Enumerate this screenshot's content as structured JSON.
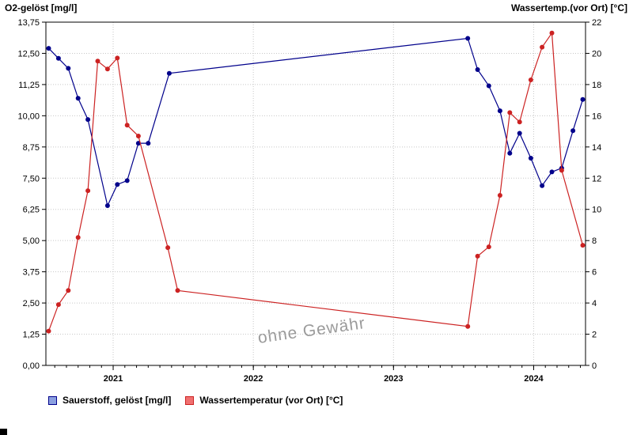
{
  "watermark_note": "ohne Gewähr",
  "legend": {
    "items": [
      {
        "label": "Sauerstoff, gelöst [mg/l]",
        "fill": "#8ba0e0",
        "border": "#00008b"
      },
      {
        "label": "Wassertemperatur (vor Ort) [°C]",
        "fill": "#f07070",
        "border": "#cc2222"
      }
    ]
  },
  "chart_data": {
    "type": "line",
    "watermark": "ohne Gewähr",
    "grid": true,
    "legend_position": "bottom-left",
    "x_axis": {
      "min": 2020.52,
      "max": 2024.37,
      "ticks": [
        2021,
        2022,
        2023,
        2024
      ],
      "tick_labels": [
        "2021",
        "2022",
        "2023",
        "2024"
      ]
    },
    "left_axis": {
      "title": "O2-gelöst [mg/l]",
      "min": 0,
      "max": 13.75,
      "ticks": [
        0,
        1.25,
        2.5,
        3.75,
        5,
        6.25,
        7.5,
        8.75,
        10,
        11.25,
        12.5,
        13.75
      ],
      "tick_labels": [
        "0,00",
        "1,25",
        "2,50",
        "3,75",
        "5,00",
        "6,25",
        "7,50",
        "8,75",
        "10,00",
        "11,25",
        "12,50",
        "13,75"
      ]
    },
    "right_axis": {
      "title": "Wassertemp.(vor Ort) [°C]",
      "min": 0,
      "max": 22,
      "ticks": [
        0,
        2,
        4,
        6,
        8,
        10,
        12,
        14,
        16,
        18,
        20,
        22
      ],
      "tick_labels": [
        "0",
        "2",
        "4",
        "6",
        "8",
        "10",
        "12",
        "14",
        "16",
        "18",
        "20",
        "22"
      ]
    },
    "series": [
      {
        "id": "oxygen",
        "name": "Sauerstoff, gelöst [mg/l]",
        "axis": "left",
        "color": "#00008b",
        "points": [
          [
            2020.54,
            12.7
          ],
          [
            2020.61,
            12.3
          ],
          [
            2020.68,
            11.9
          ],
          [
            2020.75,
            10.7
          ],
          [
            2020.82,
            9.85
          ],
          [
            2020.96,
            6.4
          ],
          [
            2021.03,
            7.25
          ],
          [
            2021.1,
            7.4
          ],
          [
            2021.18,
            8.9
          ],
          [
            2021.25,
            8.9
          ],
          [
            2021.4,
            11.7
          ],
          [
            2023.53,
            13.1
          ],
          [
            2023.6,
            11.85
          ],
          [
            2023.68,
            11.2
          ],
          [
            2023.76,
            10.2
          ],
          [
            2023.83,
            8.5
          ],
          [
            2023.9,
            9.3
          ],
          [
            2023.98,
            8.3
          ],
          [
            2024.06,
            7.2
          ],
          [
            2024.13,
            7.75
          ],
          [
            2024.2,
            7.9
          ],
          [
            2024.28,
            9.4
          ],
          [
            2024.35,
            10.65
          ]
        ]
      },
      {
        "id": "temperature",
        "name": "Wassertemperatur (vor Ort) [°C]",
        "axis": "right",
        "color": "#cc2222",
        "points": [
          [
            2020.54,
            2.2
          ],
          [
            2020.61,
            3.9
          ],
          [
            2020.68,
            4.8
          ],
          [
            2020.75,
            8.2
          ],
          [
            2020.82,
            11.2
          ],
          [
            2020.89,
            19.5
          ],
          [
            2020.96,
            19.0
          ],
          [
            2021.03,
            19.7
          ],
          [
            2021.1,
            15.4
          ],
          [
            2021.18,
            14.7
          ],
          [
            2021.39,
            7.55
          ],
          [
            2021.46,
            4.8
          ],
          [
            2023.53,
            2.5
          ],
          [
            2023.6,
            7.0
          ],
          [
            2023.68,
            7.6
          ],
          [
            2023.76,
            10.9
          ],
          [
            2023.83,
            16.2
          ],
          [
            2023.9,
            15.6
          ],
          [
            2023.98,
            18.3
          ],
          [
            2024.06,
            20.4
          ],
          [
            2024.13,
            21.3
          ],
          [
            2024.2,
            12.5
          ],
          [
            2024.35,
            7.7
          ]
        ]
      }
    ]
  }
}
